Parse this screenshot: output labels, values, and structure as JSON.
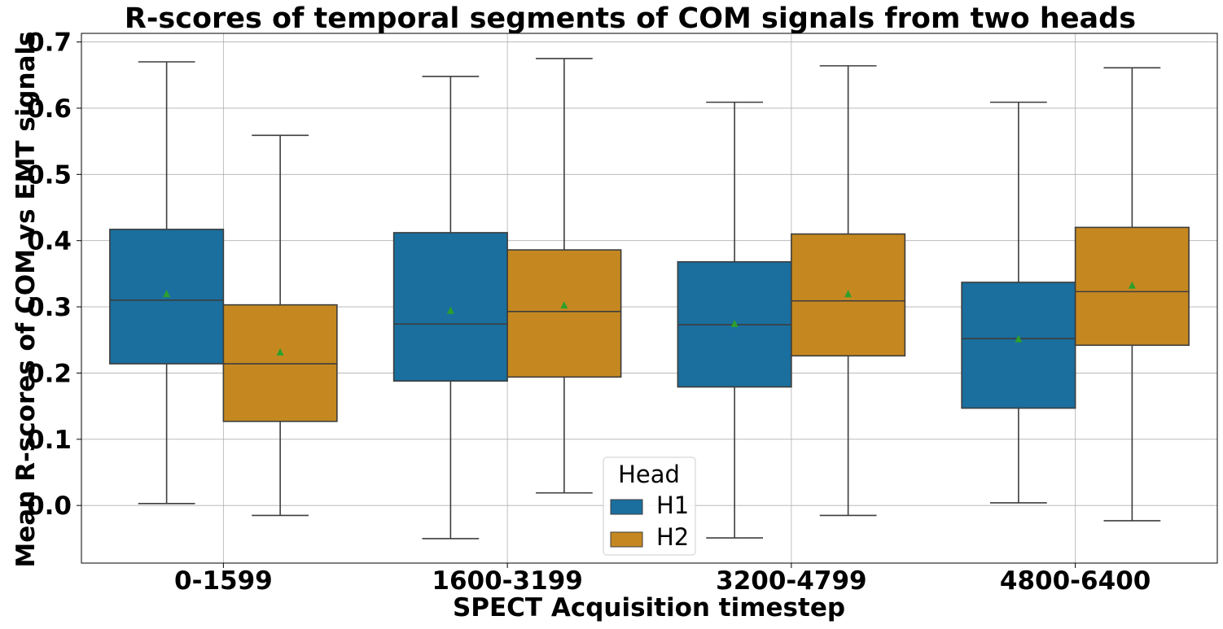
{
  "chart_data": {
    "type": "box",
    "title": "R-scores of temporal segments of COM signals from two heads",
    "xlabel": "SPECT Acquisition timestep",
    "ylabel": "Mean R-scores of COM vs EMT signals",
    "categories": [
      "0-1599",
      "1600-3199",
      "3200-4799",
      "4800-6400"
    ],
    "ylim": [
      -0.087,
      0.713
    ],
    "yticks": [
      0.0,
      0.1,
      0.2,
      0.3,
      0.4,
      0.5,
      0.6,
      0.7
    ],
    "ytick_labels": [
      "0.0",
      "0.1",
      "0.2",
      "0.3",
      "0.4",
      "0.5",
      "0.6",
      "0.7"
    ],
    "grid": true,
    "legend": {
      "title": "Head",
      "placement": "bottom-center"
    },
    "series": [
      {
        "name": "H1",
        "color": "#1a6f9e",
        "boxes": [
          {
            "whisker_low": 0.003,
            "q1": 0.214,
            "median": 0.31,
            "q3": 0.417,
            "whisker_high": 0.67,
            "mean": 0.32
          },
          {
            "whisker_low": -0.05,
            "q1": 0.188,
            "median": 0.274,
            "q3": 0.412,
            "whisker_high": 0.648,
            "mean": 0.295
          },
          {
            "whisker_low": -0.049,
            "q1": 0.179,
            "median": 0.273,
            "q3": 0.368,
            "whisker_high": 0.609,
            "mean": 0.275
          },
          {
            "whisker_low": 0.004,
            "q1": 0.147,
            "median": 0.252,
            "q3": 0.337,
            "whisker_high": 0.609,
            "mean": 0.252
          }
        ]
      },
      {
        "name": "H2",
        "color": "#c58820",
        "boxes": [
          {
            "whisker_low": -0.015,
            "q1": 0.127,
            "median": 0.214,
            "q3": 0.303,
            "whisker_high": 0.559,
            "mean": 0.232
          },
          {
            "whisker_low": 0.019,
            "q1": 0.194,
            "median": 0.293,
            "q3": 0.386,
            "whisker_high": 0.675,
            "mean": 0.303
          },
          {
            "whisker_low": -0.015,
            "q1": 0.226,
            "median": 0.309,
            "q3": 0.41,
            "whisker_high": 0.664,
            "mean": 0.32
          },
          {
            "whisker_low": -0.023,
            "q1": 0.242,
            "median": 0.323,
            "q3": 0.42,
            "whisker_high": 0.661,
            "mean": 0.333
          }
        ]
      }
    ],
    "mean_marker_color": "#2ca02c"
  }
}
